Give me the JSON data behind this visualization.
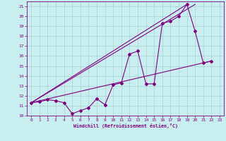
{
  "bg_color": "#c8eef0",
  "line_color": "#800080",
  "grid_color": "#aacfcf",
  "xlabel": "Windchill (Refroidissement éolien,°C)",
  "xlim": [
    -0.5,
    23.5
  ],
  "ylim": [
    10,
    21.5
  ],
  "yticks": [
    10,
    11,
    12,
    13,
    14,
    15,
    16,
    17,
    18,
    19,
    20,
    21
  ],
  "xticks": [
    0,
    1,
    2,
    3,
    4,
    5,
    6,
    7,
    8,
    9,
    10,
    11,
    12,
    13,
    14,
    15,
    16,
    17,
    18,
    19,
    20,
    21,
    22,
    23
  ],
  "series1_x": [
    0,
    1,
    2,
    3,
    4,
    5,
    6,
    7,
    8,
    9,
    10,
    11,
    12,
    13,
    14,
    15,
    16,
    17,
    18,
    19,
    20,
    21,
    22
  ],
  "series1_y": [
    11.3,
    11.4,
    11.6,
    11.5,
    11.3,
    10.2,
    10.5,
    10.8,
    11.7,
    11.1,
    13.1,
    13.3,
    16.2,
    16.5,
    13.2,
    13.2,
    19.3,
    19.5,
    20.0,
    21.2,
    18.5,
    15.3,
    15.5
  ],
  "series2_x": [
    0,
    22
  ],
  "series2_y": [
    11.3,
    15.5
  ],
  "series3_x": [
    0,
    20
  ],
  "series3_y": [
    11.3,
    21.2
  ],
  "series4_x": [
    0,
    19
  ],
  "series4_y": [
    11.3,
    21.2
  ]
}
